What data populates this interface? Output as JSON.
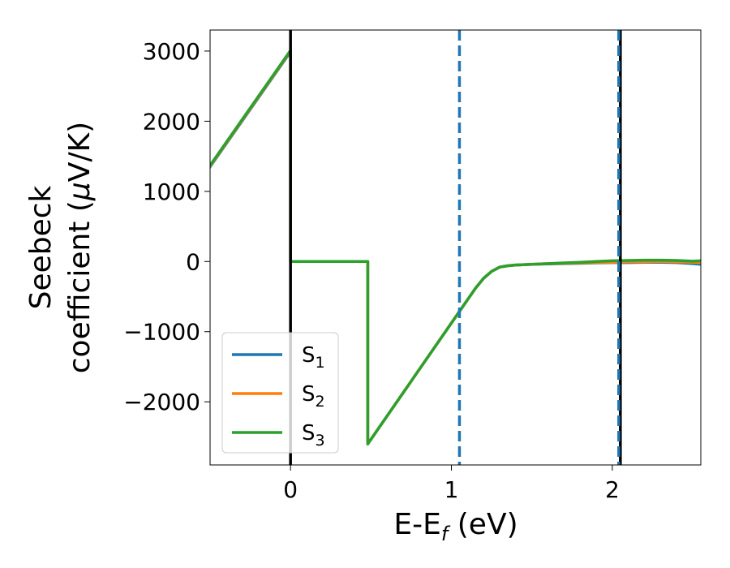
{
  "chart_data": {
    "type": "line",
    "xlabel": {
      "main": "E-E",
      "sub": "f",
      "tail": " (eV)"
    },
    "ylabel": {
      "line1": "Seebeck",
      "line2_pre": "coefficient  (",
      "mu": "μ",
      "line2_post": "V/K)"
    },
    "xlim": [
      -0.5,
      2.55
    ],
    "ylim": [
      -2900,
      3300
    ],
    "xticks": [
      0,
      1,
      2
    ],
    "xtick_labels": [
      "0",
      "1",
      "2"
    ],
    "yticks": [
      -2000,
      -1000,
      0,
      1000,
      2000,
      3000
    ],
    "ytick_labels": [
      "−2000",
      "−1000",
      "0",
      "1000",
      "2000",
      "3000"
    ],
    "grid": false,
    "legend_position": "lower-left",
    "series": [
      {
        "name": "S1",
        "name_main": "S",
        "name_sub": "1",
        "color": "#1f77b4",
        "x": [
          -0.5,
          0.0,
          0.0,
          0.48,
          0.48,
          1.15,
          1.2,
          1.25,
          1.3,
          1.35,
          1.4,
          1.5,
          1.6,
          1.7,
          1.8,
          1.9,
          2.0,
          2.1,
          2.2,
          2.3,
          2.4,
          2.5,
          2.55
        ],
        "y": [
          1350,
          2990,
          0,
          0,
          -2600,
          -380,
          -240,
          -140,
          -80,
          -60,
          -50,
          -40,
          -35,
          -30,
          -25,
          -20,
          -15,
          -15,
          -10,
          -10,
          -15,
          -30,
          -40
        ]
      },
      {
        "name": "S2",
        "name_main": "S",
        "name_sub": "2",
        "color": "#ff7f0e",
        "x": [
          -0.5,
          0.0,
          0.0,
          0.48,
          0.48,
          1.15,
          1.2,
          1.25,
          1.3,
          1.35,
          1.4,
          1.5,
          1.6,
          1.7,
          1.8,
          1.9,
          2.0,
          2.1,
          2.2,
          2.3,
          2.4,
          2.5,
          2.55
        ],
        "y": [
          1360,
          3000,
          0,
          0,
          -2600,
          -380,
          -240,
          -140,
          -80,
          -60,
          -50,
          -40,
          -30,
          -25,
          -20,
          -15,
          -10,
          -5,
          -5,
          0,
          -5,
          -10,
          -15
        ]
      },
      {
        "name": "S3",
        "name_main": "S",
        "name_sub": "3",
        "color": "#2ca02c",
        "x": [
          -0.5,
          0.0,
          0.0,
          0.48,
          0.48,
          1.15,
          1.2,
          1.25,
          1.3,
          1.35,
          1.4,
          1.5,
          1.6,
          1.7,
          1.8,
          1.9,
          2.0,
          2.1,
          2.2,
          2.3,
          2.4,
          2.5,
          2.55
        ],
        "y": [
          1370,
          3010,
          0,
          0,
          -2600,
          -380,
          -240,
          -140,
          -80,
          -60,
          -50,
          -40,
          -30,
          -20,
          -10,
          0,
          10,
          15,
          20,
          20,
          15,
          5,
          10
        ]
      }
    ],
    "vlines": [
      {
        "x": 0.0,
        "style": "solid",
        "color": "#000000"
      },
      {
        "x": 2.05,
        "style": "solid",
        "color": "#000000"
      },
      {
        "x": 1.05,
        "style": "dashed",
        "color": "#1f77b4"
      },
      {
        "x": 2.04,
        "style": "dashed",
        "color": "#1f77b4"
      }
    ]
  }
}
